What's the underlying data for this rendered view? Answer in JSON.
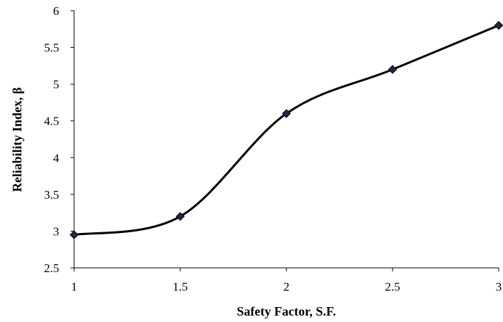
{
  "chart_data": {
    "type": "line",
    "title": "",
    "xlabel": "Safety Factor, S.F.",
    "ylabel": "Reliability Index, β",
    "xlim": [
      1,
      3
    ],
    "ylim": [
      2.5,
      6
    ],
    "xticks": [
      "1",
      "1.5",
      "2",
      "2.5",
      "3"
    ],
    "yticks": [
      "2.5",
      "3",
      "3.5",
      "4",
      "4.5",
      "5",
      "5.5",
      "6"
    ],
    "grid": false,
    "legend": "none",
    "line_color": "#000000",
    "marker_color": "#1f2a44",
    "marker": "diamond",
    "smooth": true,
    "series": [
      {
        "x": [
          1,
          1.5,
          2,
          2.5,
          3
        ],
        "y": [
          2.95,
          3.2,
          4.6,
          5.2,
          5.8
        ]
      }
    ]
  }
}
